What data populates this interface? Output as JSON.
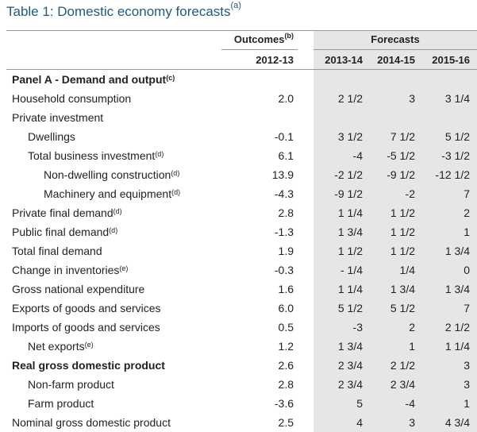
{
  "title": "Table 1: Domestic economy forecasts",
  "title_note": "(a)",
  "header": {
    "outcomes": "Outcomes",
    "outcomes_note": "(b)",
    "forecasts": "Forecasts",
    "years": [
      "2012-13",
      "2013-14",
      "2014-15",
      "2015-16"
    ]
  },
  "rows": [
    {
      "label": "Panel A - Demand and output",
      "note": "(c)",
      "values": [
        "",
        "",
        "",
        ""
      ]
    },
    {
      "label": "Household consumption",
      "note": "",
      "values": [
        "2.0",
        "2 1/2",
        "3",
        "3 1/4"
      ]
    },
    {
      "label": "Private investment",
      "note": "",
      "values": [
        "",
        "",
        "",
        ""
      ]
    },
    {
      "label": "Dwellings",
      "note": "",
      "values": [
        "-0.1",
        "3 1/2",
        "7 1/2",
        "5 1/2"
      ]
    },
    {
      "label": "Total business investment",
      "note": "(d)",
      "values": [
        "6.1",
        "-4",
        "-5 1/2",
        "-3 1/2"
      ]
    },
    {
      "label": "Non-dwelling construction",
      "note": "(d)",
      "values": [
        "13.9",
        "-2 1/2",
        "-9 1/2",
        "-12 1/2"
      ]
    },
    {
      "label": "Machinery and equipment",
      "note": "(d)",
      "values": [
        "-4.3",
        "-9 1/2",
        "-2",
        "7"
      ]
    },
    {
      "label": "Private final demand",
      "note": "(d)",
      "values": [
        "2.8",
        "1 1/4",
        "1 1/2",
        "2"
      ]
    },
    {
      "label": "Public final demand",
      "note": "(d)",
      "values": [
        "-1.3",
        "1 3/4",
        "1 1/2",
        "1"
      ]
    },
    {
      "label": "Total final demand",
      "note": "",
      "values": [
        "1.9",
        "1 1/2",
        "1 1/2",
        "1 3/4"
      ]
    },
    {
      "label": "Change in inventories",
      "note": "(e)",
      "values": [
        "-0.3",
        "- 1/4",
        "1/4",
        "0"
      ]
    },
    {
      "label": "Gross national expenditure",
      "note": "",
      "values": [
        "1.6",
        "1 1/4",
        "1 3/4",
        "1 3/4"
      ]
    },
    {
      "label": "Exports of goods and services",
      "note": "",
      "values": [
        "6.0",
        "5 1/2",
        "5 1/2",
        "7"
      ]
    },
    {
      "label": "Imports of goods and services",
      "note": "",
      "values": [
        "0.5",
        "-3",
        "2",
        "2 1/2"
      ]
    },
    {
      "label": "Net exports",
      "note": "(e)",
      "values": [
        "1.2",
        "1 3/4",
        "1",
        "1 1/4"
      ]
    },
    {
      "label": "Real gross domestic product",
      "note": "",
      "values": [
        "2.6",
        "2 3/4",
        "2 1/2",
        "3"
      ]
    },
    {
      "label": "Non-farm product",
      "note": "",
      "values": [
        "2.8",
        "2 3/4",
        "2 3/4",
        "3"
      ]
    },
    {
      "label": "Farm product",
      "note": "",
      "values": [
        "-3.6",
        "5",
        "-4",
        "1"
      ]
    },
    {
      "label": "Nominal gross domestic product",
      "note": "",
      "values": [
        "2.5",
        "4",
        "3",
        "4 3/4"
      ]
    }
  ]
}
